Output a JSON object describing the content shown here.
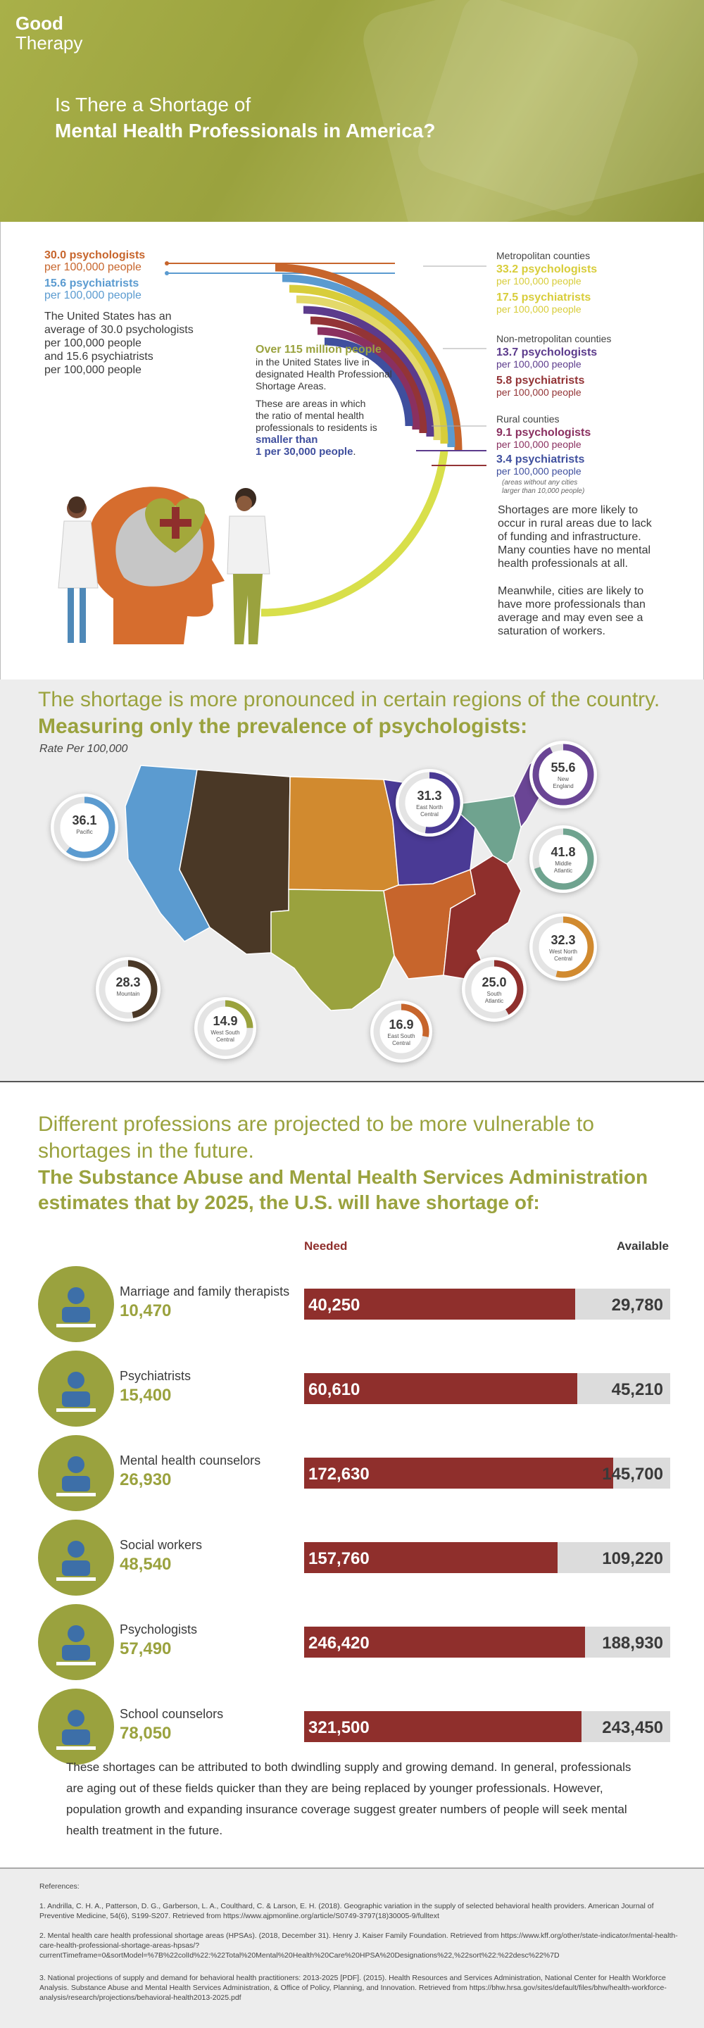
{
  "brand": {
    "line1": "Good",
    "line2": "Therapy"
  },
  "hero": {
    "title_line1": "Is There a Shortage of",
    "title_line2": "Mental Health Professionals in America?"
  },
  "national": {
    "psych": "30.0 psychologists",
    "psych_unit": "per 100,000 people",
    "psychiatrists": "15.6 psychiatrists",
    "psychiatrists_unit": "per 100,000 people",
    "desc": [
      "The United States has an",
      "average of 30.0 psychologists",
      "per 100,000 people",
      "and 15.6 psychiatrists",
      "per 100,000 people"
    ]
  },
  "hpsa": {
    "headline": "Over 115 million people",
    "lines": [
      "in the United States live in",
      "designated Health Professional",
      "Shortage Areas."
    ],
    "lines2": [
      "These are areas in which",
      "the ratio of mental health",
      "professionals to residents is"
    ],
    "emph1": "smaller than",
    "emph2": "1 per 30,000 people",
    "emph2_end": "."
  },
  "counties": {
    "metro_title": "Metropolitan counties",
    "metro_psych": "33.2 psychologists",
    "metro_psych_unit": "per 100,000 people",
    "metro_psychiatrists": "17.5 psychiatrists",
    "metro_psychiatrists_unit": "per 100,000 people",
    "nonmetro_title": "Non-metropolitan counties",
    "nonmetro_psych": "13.7 psychologists",
    "nonmetro_psych_unit": "per 100,000 people",
    "nonmetro_psychiatrists": "5.8 psychiatrists",
    "nonmetro_psychiatrists_unit": "per 100,000 people",
    "rural_title": "Rural counties",
    "rural_psych": "9.1 psychologists",
    "rural_psych_unit": "per 100,000 people",
    "rural_psychiatrists": "3.4 psychiatrists",
    "rural_psychiatrists_unit": "per 100,000 people",
    "rural_note1": "(areas without any cities",
    "rural_note2": "larger than 10,000 people)",
    "para1": [
      "Shortages are more likely to",
      "occur in rural areas due to lack",
      "of funding and infrastructure.",
      "Many counties have no mental",
      "health professionals at all."
    ],
    "para2": [
      "Meanwhile, cities are likely to",
      "have more professionals than",
      "average and may even see a",
      "saturation of workers."
    ]
  },
  "regions_section": {
    "heading": "The shortage is more pronounced in certain regions of the country.",
    "subheading": "Measuring only the prevalence of psychologists:",
    "rate_label": "Rate Per 100,000"
  },
  "colors": {
    "olive": "#9aa23e",
    "orange": "#c7652c",
    "blue": "#5b9bd0",
    "yellow": "#d8cd3a",
    "purple": "#5c3b8c",
    "maroon": "#8f2f2c",
    "navy": "#3f4f9e",
    "teal": "#6fa38f"
  },
  "chart_data": [
    {
      "type": "table",
      "title": "Rate Per 100,000",
      "categories": [
        "Pacific",
        "Mountain",
        "West South Central",
        "East North Central",
        "East South Central",
        "South Atlantic",
        "West North Central",
        "Middle Atlantic",
        "New England"
      ],
      "values": [
        36.1,
        28.3,
        14.9,
        31.3,
        16.9,
        25.0,
        32.3,
        41.8,
        55.6
      ],
      "region_colors": [
        "#5b9bd0",
        "#4a3826",
        "#9aa23e",
        "#4a3a95",
        "#c7652c",
        "#8f2f2c",
        "#d18a2f",
        "#6fa38f",
        "#6a4595"
      ]
    },
    {
      "type": "bar",
      "title": "The Substance Abuse and Mental Health Services Administration estimates that by 2025, the U.S. will have shortage of:",
      "categories": [
        "Marriage and family therapists",
        "Psychiatrists",
        "Mental health counselors",
        "Social workers",
        "Psychologists",
        "School counselors"
      ],
      "series": [
        {
          "name": "Needed",
          "values": [
            40250,
            60610,
            172630,
            157760,
            246420,
            321500
          ]
        },
        {
          "name": "Available",
          "values": [
            29780,
            45210,
            145700,
            109220,
            188930,
            243450
          ]
        }
      ],
      "shortage": [
        10470,
        15400,
        26930,
        48540,
        57490,
        78050
      ]
    }
  ],
  "region_labels": [
    {
      "value": "36.1",
      "line1": "Pacific",
      "line2": ""
    },
    {
      "value": "28.3",
      "line1": "Mountain",
      "line2": ""
    },
    {
      "value": "14.9",
      "line1": "West South",
      "line2": "Central"
    },
    {
      "value": "31.3",
      "line1": "East North",
      "line2": "Central"
    },
    {
      "value": "16.9",
      "line1": "East South",
      "line2": "Central"
    },
    {
      "value": "25.0",
      "line1": "South",
      "line2": "Atlantic"
    },
    {
      "value": "32.3",
      "line1": "West North",
      "line2": "Central"
    },
    {
      "value": "41.8",
      "line1": "Middle",
      "line2": "Atlantic"
    },
    {
      "value": "55.6",
      "line1": "New",
      "line2": "England"
    }
  ],
  "professions_section": {
    "heading": "Different professions are projected to be more vulnerable to shortages in the future.",
    "subheading": "The Substance Abuse and Mental Health Services Administration estimates that by 2025, the U.S. will have shortage of:",
    "needed_label": "Needed",
    "available_label": "Available"
  },
  "professions": [
    {
      "name": "Marriage and family therapists",
      "shortage": "10,470",
      "needed": "40,250",
      "available": "29,780"
    },
    {
      "name": "Psychiatrists",
      "shortage": "15,400",
      "needed": "60,610",
      "available": "45,210"
    },
    {
      "name": "Mental health counselors",
      "shortage": "26,930",
      "needed": "172,630",
      "available": "145,700"
    },
    {
      "name": "Social workers",
      "shortage": "48,540",
      "needed": "157,760",
      "available": "109,220"
    },
    {
      "name": "Psychologists",
      "shortage": "57,490",
      "needed": "246,420",
      "available": "188,930"
    },
    {
      "name": "School counselors",
      "shortage": "78,050",
      "needed": "321,500",
      "available": "243,450"
    }
  ],
  "icons": [
    "family-therapy-icon",
    "psychiatrist-icon",
    "counselor-icon",
    "social-worker-icon",
    "psychologist-icon",
    "school-counselor-icon"
  ],
  "conclusion": "These shortages can be attributed to both dwindling supply and growing demand. In general, professionals are aging out of these fields quicker than they are being replaced by younger professionals. However, population growth and expanding insurance coverage suggest greater numbers of people will seek mental health treatment in the future.",
  "references": {
    "title": "References:",
    "items": [
      "1. Andrilla, C. H. A., Patterson, D. G., Garberson, L. A., Coulthard, C. & Larson, E. H. (2018). Geographic variation in the supply of selected behavioral health providers. American Journal of Preventive Medicine, 54(6), S199-S207. Retrieved from https://www.ajpmonline.org/article/S0749-3797(18)30005-9/fulltext",
      "2. Mental health care health professional shortage areas (HPSAs). (2018, December 31). Henry J. Kaiser Family Foundation. Retrieved from https://www.kff.org/other/state-indicator/mental-health-care-health-professional-shortage-areas-hpsas/?currentTimeframe=0&sortModel=%7B%22colId%22:%22Total%20Mental%20Health%20Care%20HPSA%20Designations%22,%22sort%22:%22desc%22%7D",
      "3. National projections of supply and demand for behavioral health practitioners: 2013-2025 [PDF]. (2015). Health Resources and Services Administration, National Center for Health Workforce Analysis. Substance Abuse and Mental Health Services Administration, & Office of Policy, Planning, and Innovation. Retrieved from https://bhw.hrsa.gov/sites/default/files/bhw/health-workforce-analysis/research/projections/behavioral-health2013-2025.pdf"
    ]
  }
}
